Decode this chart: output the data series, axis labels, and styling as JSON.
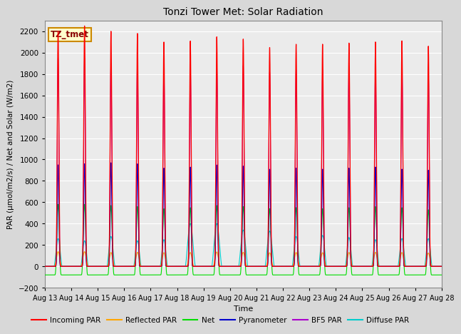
{
  "title": "Tonzi Tower Met: Solar Radiation",
  "ylabel": "PAR (μmol/m2/s) / Net and Solar (W/m2)",
  "xlabel": "Time",
  "tag_label": "TZ_tmet",
  "ylim": [
    -200,
    2300
  ],
  "yticks": [
    -200,
    0,
    200,
    400,
    600,
    800,
    1000,
    1200,
    1400,
    1600,
    1800,
    2000,
    2200
  ],
  "start_day": 13,
  "end_day": 28,
  "n_days": 15,
  "points_per_day": 288,
  "series": {
    "incoming_par": {
      "color": "#ff0000",
      "label": "Incoming PAR"
    },
    "reflected_par": {
      "color": "#ffa500",
      "label": "Reflected PAR"
    },
    "net": {
      "color": "#00dd00",
      "label": "Net"
    },
    "pyranometer": {
      "color": "#0000cc",
      "label": "Pyranometer"
    },
    "bf5_par": {
      "color": "#aa00cc",
      "label": "BF5 PAR"
    },
    "diffuse_par": {
      "color": "#00cccc",
      "label": "Diffuse PAR"
    }
  },
  "background_color": "#d8d8d8",
  "plot_bg_color": "#ebebeb",
  "tag_bg_color": "#ffffcc",
  "tag_border_color": "#cc8800",
  "grid_color": "#ffffff",
  "figsize": [
    6.4,
    4.8
  ],
  "dpi": 100
}
